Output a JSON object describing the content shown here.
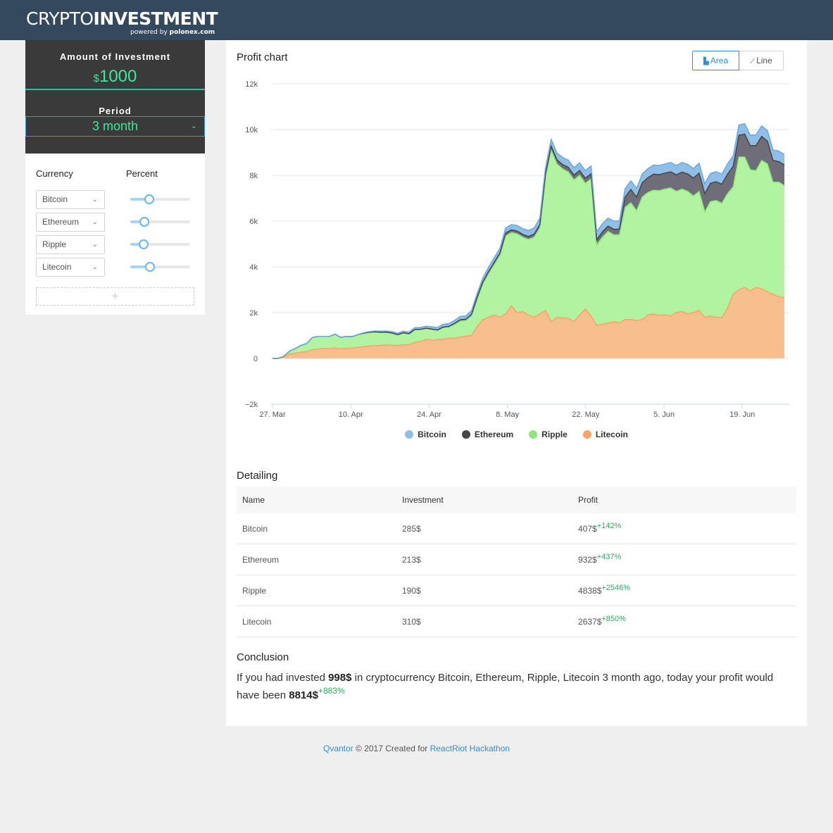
{
  "header": {
    "logo_thin": "CRYPTO",
    "logo_bold": "INVESTMENT",
    "powered_prefix": "powered by ",
    "powered_brand": "polonex.com"
  },
  "sidebar": {
    "investment_label": "Amount of Investment",
    "investment_currency": "$",
    "investment_value": "1000",
    "period_label": "Period",
    "period_value": "3 month",
    "currency_header": "Currency",
    "percent_header": "Percent",
    "rows": [
      {
        "currency": "Bitcoin",
        "percent": 0.28
      },
      {
        "currency": "Ethereum",
        "percent": 0.19
      },
      {
        "currency": "Ripple",
        "percent": 0.17
      },
      {
        "currency": "Litecoin",
        "percent": 0.3
      }
    ],
    "add_label": "+"
  },
  "chart_section": {
    "title": "Profit chart",
    "area_label": "Area",
    "line_label": "Line"
  },
  "chart_data": {
    "type": "area",
    "stacked": true,
    "x_ticks": [
      "27. Mar",
      "10. Apr",
      "24. Apr",
      "8. May",
      "22. May",
      "5. Jun",
      "19. Jun"
    ],
    "y_ticks": [
      "−2k",
      "0",
      "2k",
      "4k",
      "6k",
      "8k",
      "10k",
      "12k"
    ],
    "ylim": [
      -2000,
      12000
    ],
    "x_start_label": "27. Mar",
    "legend_position": "bottom",
    "grid": true,
    "series": [
      {
        "name": "Litecoin",
        "color": "#f7be8e",
        "stroke": "#f5a568",
        "values": [
          0,
          0,
          60,
          200,
          230,
          270,
          300,
          380,
          400,
          440,
          430,
          460,
          420,
          440,
          450,
          480,
          520,
          540,
          560,
          560,
          600,
          580,
          560,
          600,
          600,
          700,
          750,
          830,
          800,
          820,
          840,
          880,
          880,
          930,
          970,
          1000,
          1400,
          1700,
          1800,
          1900,
          1800,
          1950,
          2300,
          2000,
          2050,
          1900,
          1800,
          1950,
          2100,
          1600,
          1800,
          1780,
          1750,
          1600,
          1900,
          2150,
          1850,
          1450,
          1500,
          1550,
          1600,
          1550,
          1700,
          1700,
          1650,
          1700,
          1900,
          1950,
          1880,
          1900,
          1850,
          2000,
          2050,
          1950,
          2000,
          2100,
          1800,
          1850,
          1800,
          1780,
          2200,
          2800,
          3000,
          3100,
          2950,
          3100,
          3050,
          2900,
          2800,
          2700,
          2650
        ]
      },
      {
        "name": "Ripple",
        "color": "#b1f3a0",
        "stroke": "#8ee57c",
        "values": [
          0,
          0,
          40,
          120,
          200,
          300,
          350,
          530,
          560,
          520,
          530,
          600,
          500,
          520,
          500,
          560,
          580,
          600,
          600,
          580,
          540,
          530,
          480,
          520,
          480,
          560,
          520,
          490,
          480,
          420,
          500,
          480,
          600,
          700,
          680,
          860,
          1200,
          1550,
          1900,
          2200,
          2700,
          3400,
          3200,
          3450,
          3250,
          3300,
          3500,
          3750,
          5800,
          7500,
          6700,
          6500,
          6400,
          6200,
          6100,
          5500,
          6000,
          3500,
          3800,
          4000,
          3800,
          3850,
          4900,
          5100,
          4800,
          5350,
          5350,
          5400,
          5450,
          5500,
          5600,
          5300,
          5350,
          5350,
          5100,
          5200,
          4600,
          5000,
          5100,
          5000,
          5000,
          4700,
          5800,
          5700,
          5300,
          5100,
          5600,
          5600,
          4900,
          5000,
          4900
        ]
      },
      {
        "name": "Ethereum",
        "color": "#6f6d77",
        "stroke": "#45444b",
        "values": [
          0,
          0,
          0,
          0,
          0,
          0,
          0,
          0,
          0,
          0,
          0,
          0,
          0,
          0,
          0,
          0,
          0,
          0,
          0,
          0,
          0,
          0,
          0,
          0,
          0,
          0,
          0,
          0,
          0,
          0,
          30,
          40,
          50,
          60,
          60,
          70,
          80,
          100,
          100,
          110,
          110,
          130,
          120,
          120,
          120,
          130,
          130,
          150,
          150,
          170,
          180,
          190,
          200,
          210,
          210,
          220,
          220,
          230,
          230,
          230,
          240,
          250,
          450,
          580,
          600,
          620,
          650,
          700,
          700,
          700,
          700,
          720,
          740,
          760,
          780,
          800,
          800,
          800,
          820,
          830,
          850,
          900,
          950,
          1000,
          1050,
          1100,
          1050,
          1000,
          950,
          900,
          900
        ]
      },
      {
        "name": "Bitcoin",
        "color": "#8fbfe6",
        "stroke": "#6aa8dc",
        "values": [
          0,
          0,
          0,
          0,
          0,
          0,
          0,
          0,
          0,
          0,
          0,
          0,
          0,
          0,
          0,
          0,
          20,
          30,
          40,
          50,
          60,
          60,
          60,
          70,
          70,
          80,
          80,
          90,
          100,
          110,
          120,
          120,
          130,
          140,
          150,
          160,
          170,
          180,
          190,
          200,
          210,
          220,
          230,
          240,
          250,
          260,
          270,
          280,
          290,
          300,
          300,
          310,
          320,
          330,
          330,
          340,
          340,
          350,
          350,
          350,
          360,
          360,
          370,
          380,
          380,
          390,
          390,
          400,
          400,
          400,
          410,
          410,
          420,
          420,
          420,
          430,
          430,
          430,
          440,
          440,
          450,
          450,
          450,
          460,
          460,
          460,
          460,
          460,
          460,
          460,
          460
        ]
      }
    ]
  },
  "detailing": {
    "title": "Detailing",
    "headers": [
      "Name",
      "Investment",
      "Profit"
    ],
    "rows": [
      {
        "name": "Bitcoin",
        "investment": "285$",
        "profit": "407$",
        "pct": "+142%"
      },
      {
        "name": "Ethereum",
        "investment": "213$",
        "profit": "932$",
        "pct": "+437%"
      },
      {
        "name": "Ripple",
        "investment": "190$",
        "profit": "4838$",
        "pct": "+2546%"
      },
      {
        "name": "Litecoin",
        "investment": "310$",
        "profit": "2637$",
        "pct": "+850%"
      }
    ]
  },
  "conclusion": {
    "title": "Conclusion",
    "text_1": "If you had invested ",
    "invested": "998$",
    "text_2": " in cryptocurrency Bitcoin, Ethereum, Ripple, Litecoin 3 month ago, today your profit would have been ",
    "profit": "8814$",
    "pct": "+883%"
  },
  "footer": {
    "author": "Qvantor",
    "middle": " © 2017 Created for ",
    "event": "ReactRiot Hackathon"
  }
}
